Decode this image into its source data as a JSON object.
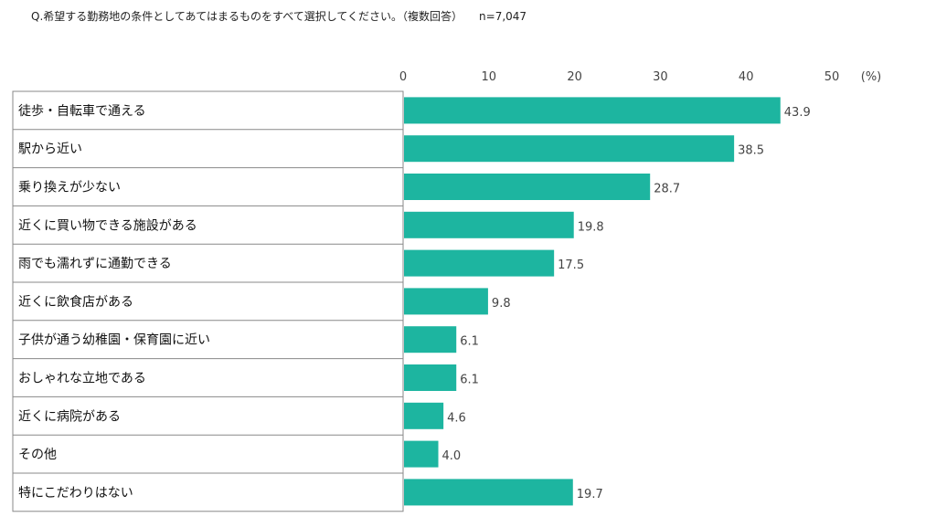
{
  "question": "Q.希望する勤務地の条件としてあてはまるものをすべて選択してください。（複数回答）",
  "sample_size": "n=7,047",
  "chart_data": {
    "type": "bar",
    "orientation": "horizontal",
    "categories": [
      "徒歩・自転車で通える",
      "駅から近い",
      "乗り換えが少ない",
      "近くに買い物できる施設がある",
      "雨でも濡れずに通勤できる",
      "近くに飲食店がある",
      "子供が通う幼稚園・保育園に近い",
      "おしゃれな立地である",
      "近くに病院がある",
      "その他",
      "特にこだわりはない"
    ],
    "values": [
      43.9,
      38.5,
      28.7,
      19.8,
      17.5,
      9.8,
      6.1,
      6.1,
      4.6,
      4.0,
      19.7
    ],
    "value_labels": [
      "43.9",
      "38.5",
      "28.7",
      "19.8",
      "17.5",
      "9.8",
      "6.1",
      "6.1",
      "4.6",
      "4.0",
      "19.7"
    ],
    "x_ticks": [
      "0",
      "10",
      "20",
      "30",
      "40",
      "50"
    ],
    "x_unit": "(%)",
    "xlim": [
      0,
      50
    ],
    "legend": "none",
    "grid": false,
    "bar_color": "#1db5a0",
    "border_color": "#888888"
  }
}
